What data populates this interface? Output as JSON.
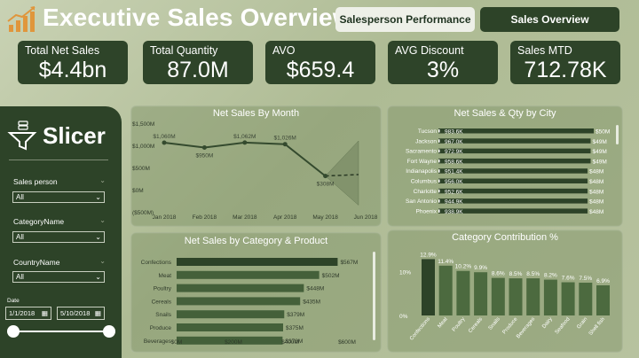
{
  "header": {
    "title": "Executive Sales Overview",
    "nav": {
      "salesperson_performance": "Salesperson Performance",
      "sales_overview": "Sales Overview"
    }
  },
  "kpis": [
    {
      "label": "Total Net Sales",
      "value": "$4.4bn"
    },
    {
      "label": "Total Quantity",
      "value": "87.0M"
    },
    {
      "label": "AVO",
      "value": "$659.4"
    },
    {
      "label": "AVG Discount",
      "value": "3%"
    },
    {
      "label": "Sales MTD",
      "value": "712.78K"
    }
  ],
  "slicer": {
    "title": "Slicer",
    "salesperson_label": "Sales person",
    "salesperson_value": "All",
    "category_label": "CategoryName",
    "category_value": "All",
    "country_label": "CountryName",
    "country_value": "All",
    "date_label": "Date",
    "date_start": "1/1/2018",
    "date_end": "5/10/2018"
  },
  "colors": {
    "dark_green": "#2d4328",
    "bar_green": "#3f5a35",
    "line": "#344a2e"
  },
  "chart_data": [
    {
      "type": "line",
      "title": "Net Sales By Month",
      "categories": [
        "Jan 2018",
        "Feb 2018",
        "Mar 2018",
        "Apr 2018",
        "May 2018",
        "Jun 2018"
      ],
      "values": [
        1060,
        950,
        1062,
        1026,
        308,
        null
      ],
      "data_labels": [
        "$1,060M",
        "$950M",
        "$1,062M",
        "$1,026M",
        "$308M",
        ""
      ],
      "forecast": [
        308,
        340
      ],
      "yticks": [
        "$1,500M",
        "$1,000M",
        "$500M",
        "$0M",
        "($500M)"
      ],
      "ytick_values": [
        1500,
        1000,
        500,
        0,
        -500
      ],
      "ylim": [
        -500,
        1500
      ],
      "ylabel": "",
      "xlabel": ""
    },
    {
      "type": "bar",
      "orientation": "horizontal",
      "title": "Net Sales & Qty by City",
      "categories": [
        "Tucson",
        "Jackson",
        "Sacramento",
        "Fort Wayne",
        "Indianapolis",
        "Columbus",
        "Charlotte",
        "San Antonio",
        "Phoenix"
      ],
      "qty_labels": [
        "983.6K",
        "967.0K",
        "972.9K",
        "958.6K",
        "951.4K",
        "956.0K",
        "952.6K",
        "944.9K",
        "938.9K"
      ],
      "sales_labels": [
        "$50M",
        "$49M",
        "$49M",
        "$49M",
        "$48M",
        "$48M",
        "$48M",
        "$48M",
        "$48M"
      ],
      "values": [
        50,
        49,
        49,
        49,
        48,
        48,
        48,
        48,
        48
      ]
    },
    {
      "type": "bar",
      "orientation": "horizontal",
      "title": "Net Sales by Category & Product",
      "categories": [
        "Confections",
        "Meat",
        "Poultry",
        "Cereals",
        "Snails",
        "Produce",
        "Beverages"
      ],
      "values": [
        567,
        502,
        448,
        435,
        379,
        375,
        373
      ],
      "data_labels": [
        "$567M",
        "$502M",
        "$448M",
        "$435M",
        "$379M",
        "$375M",
        "$373M"
      ],
      "xticks": [
        "$0M",
        "$200M",
        "$400M",
        "$600M"
      ],
      "xtick_values": [
        0,
        200,
        400,
        600
      ],
      "xlim": [
        0,
        600
      ]
    },
    {
      "type": "bar",
      "title": "Category Contribution %",
      "categories": [
        "Confections",
        "Meat",
        "Poultry",
        "Cereals",
        "Snails",
        "Produce",
        "Beverages",
        "Dairy",
        "Seafood",
        "Grain",
        "Shell fish"
      ],
      "values": [
        12.9,
        11.4,
        10.2,
        9.9,
        8.6,
        8.5,
        8.5,
        8.2,
        7.6,
        7.5,
        6.9
      ],
      "data_labels": [
        "12.9%",
        "11.4%",
        "10.2%",
        "9.9%",
        "8.6%",
        "8.5%",
        "8.5%",
        "8.2%",
        "7.6%",
        "7.5%",
        "6.9%"
      ],
      "yticks": [
        "10%",
        "0%"
      ],
      "ytick_values": [
        10,
        0
      ],
      "ylim": [
        0,
        14
      ]
    }
  ]
}
